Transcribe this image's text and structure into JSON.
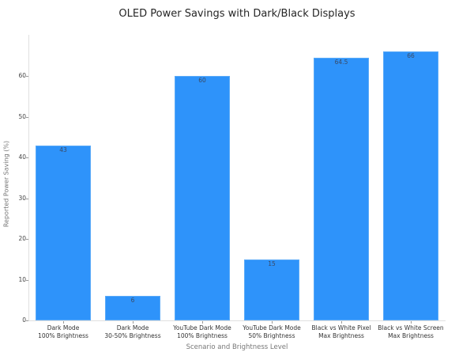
{
  "chart_data": {
    "type": "bar",
    "title": "OLED Power Savings with Dark/Black Displays",
    "xlabel": "Scenario and Brightness Level",
    "ylabel": "Reported Power Saving (%)",
    "categories": [
      "Dark Mode\n100% Brightness",
      "Dark Mode\n30-50% Brightness",
      "YouTube Dark Mode\n100% Brightness",
      "YouTube Dark Mode\n50% Brightness",
      "Black vs White Pixel\nMax Brightness",
      "Black vs White Screen\nMax Brightness"
    ],
    "values": [
      43,
      6,
      60,
      15,
      64.5,
      66
    ],
    "value_labels": [
      "43",
      "6",
      "60",
      "15",
      "64.5",
      "66"
    ],
    "yticks": [
      "0",
      "10",
      "20",
      "30",
      "40",
      "50",
      "60"
    ],
    "ylim": [
      0,
      70
    ],
    "grid": false,
    "legend": null,
    "bar_color": "#2e93fa"
  },
  "bars": [
    {
      "line1": "Dark Mode",
      "line2": "100% Brightness",
      "value": "43"
    },
    {
      "line1": "Dark Mode",
      "line2": "30-50% Brightness",
      "value": "6"
    },
    {
      "line1": "YouTube Dark Mode",
      "line2": "100% Brightness",
      "value": "60"
    },
    {
      "line1": "YouTube Dark Mode",
      "line2": "50% Brightness",
      "value": "15"
    },
    {
      "line1": "Black vs White Pixel",
      "line2": "Max Brightness",
      "value": "64.5"
    },
    {
      "line1": "Black vs White Screen",
      "line2": "Max Brightness",
      "value": "66"
    }
  ]
}
